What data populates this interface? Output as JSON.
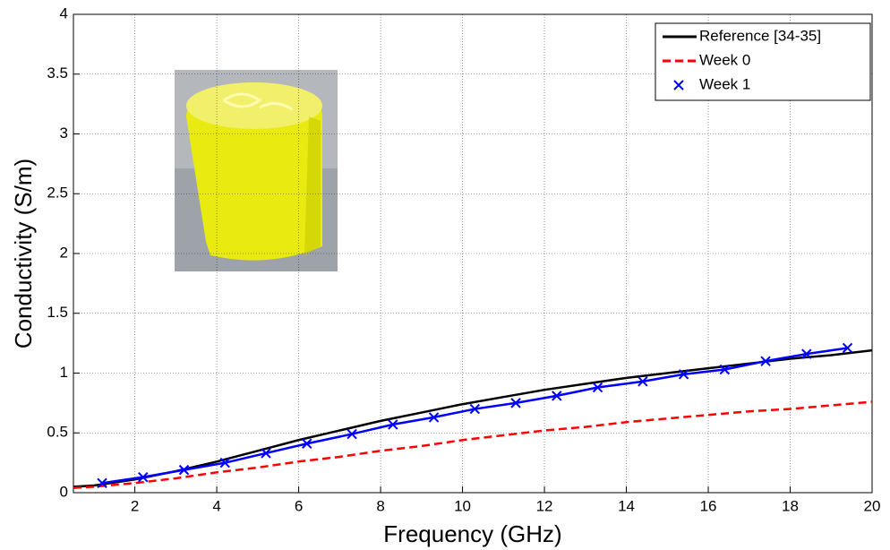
{
  "chart_data": {
    "type": "line",
    "x_label": "Frequency (GHz)",
    "y_label": "Conductivity (S/m)",
    "xlim": [
      0.5,
      20
    ],
    "ylim": [
      0,
      4
    ],
    "xticks": [
      2,
      4,
      6,
      8,
      10,
      12,
      14,
      16,
      18,
      20
    ],
    "yticks": [
      0,
      0.5,
      1,
      1.5,
      2,
      2.5,
      3,
      3.5,
      4
    ],
    "grid": true,
    "legend": "upper right",
    "series": [
      {
        "name": "Reference [34-35]",
        "color": "#000000",
        "linestyle": "solid",
        "marker": "none",
        "x": [
          0.5,
          1,
          2,
          3,
          4,
          5,
          6,
          7,
          8,
          9,
          10,
          11,
          12,
          13,
          14,
          15,
          16,
          17,
          18,
          19,
          20
        ],
        "values": [
          0.05,
          0.06,
          0.11,
          0.18,
          0.26,
          0.35,
          0.44,
          0.52,
          0.6,
          0.67,
          0.74,
          0.8,
          0.86,
          0.91,
          0.96,
          1.0,
          1.04,
          1.08,
          1.12,
          1.15,
          1.19
        ]
      },
      {
        "name": "Week 0",
        "color": "#ff0000",
        "linestyle": "dashed",
        "marker": "none",
        "x": [
          0.5,
          1,
          2,
          3,
          4,
          5,
          6,
          7,
          8,
          9,
          10,
          11,
          12,
          13,
          14,
          15,
          16,
          17,
          18,
          19,
          20
        ],
        "values": [
          0.04,
          0.05,
          0.08,
          0.12,
          0.17,
          0.21,
          0.26,
          0.3,
          0.35,
          0.39,
          0.44,
          0.48,
          0.52,
          0.55,
          0.59,
          0.62,
          0.65,
          0.68,
          0.7,
          0.73,
          0.76
        ]
      },
      {
        "name": "Week 1",
        "color": "#0000ff",
        "linestyle": "solid",
        "marker": "x",
        "x": [
          1.2,
          2.2,
          3.2,
          4.2,
          5.2,
          6.2,
          7.3,
          8.3,
          9.3,
          10.3,
          11.3,
          12.3,
          13.3,
          14.4,
          15.4,
          16.4,
          17.4,
          18.4,
          19.4
        ],
        "values": [
          0.08,
          0.13,
          0.19,
          0.25,
          0.33,
          0.41,
          0.49,
          0.57,
          0.63,
          0.7,
          0.75,
          0.81,
          0.88,
          0.93,
          0.99,
          1.03,
          1.1,
          1.16,
          1.21
        ]
      }
    ]
  }
}
